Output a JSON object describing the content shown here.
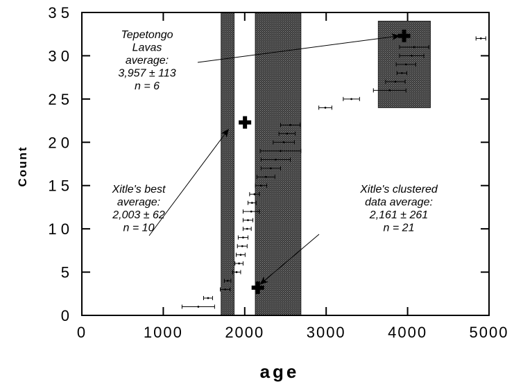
{
  "chart_data": {
    "type": "scatter",
    "title": "",
    "xlabel": "age",
    "ylabel": "Count",
    "xlim": [
      0,
      5000
    ],
    "ylim": [
      0,
      35
    ],
    "xticks": [
      "0",
      "1000",
      "2000",
      "3000",
      "4000",
      "5000"
    ],
    "yticks": [
      "0",
      "5",
      "1 0",
      "1 5",
      "2 0",
      "2 5",
      "3 0",
      "3 5"
    ],
    "grid": false,
    "shaded_bands": [
      {
        "x0": 1710,
        "x1": 1870
      },
      {
        "x0": 2130,
        "x1": 2690
      },
      {
        "x0": 3640,
        "x1": 4280,
        "y0": 24,
        "y1": 34
      }
    ],
    "points": [
      {
        "x": 1430,
        "y": 1,
        "err": 200
      },
      {
        "x": 1550,
        "y": 2,
        "err": 55
      },
      {
        "x": 1760,
        "y": 3,
        "err": 60
      },
      {
        "x": 1790,
        "y": 4,
        "err": 40
      },
      {
        "x": 1900,
        "y": 5,
        "err": 50
      },
      {
        "x": 1930,
        "y": 6,
        "err": 50
      },
      {
        "x": 1950,
        "y": 7,
        "err": 55
      },
      {
        "x": 1970,
        "y": 8,
        "err": 60
      },
      {
        "x": 1980,
        "y": 9,
        "err": 60
      },
      {
        "x": 2030,
        "y": 10,
        "err": 50
      },
      {
        "x": 2040,
        "y": 11,
        "err": 60
      },
      {
        "x": 2080,
        "y": 12,
        "err": 100
      },
      {
        "x": 2090,
        "y": 13,
        "err": 50
      },
      {
        "x": 2120,
        "y": 14,
        "err": 60
      },
      {
        "x": 2200,
        "y": 15,
        "err": 70
      },
      {
        "x": 2260,
        "y": 16,
        "err": 110
      },
      {
        "x": 2320,
        "y": 17,
        "err": 120
      },
      {
        "x": 2380,
        "y": 18,
        "err": 180
      },
      {
        "x": 2440,
        "y": 19,
        "err": 250
      },
      {
        "x": 2480,
        "y": 20,
        "err": 130
      },
      {
        "x": 2520,
        "y": 21,
        "err": 100
      },
      {
        "x": 2560,
        "y": 22,
        "err": 120
      },
      {
        "x": 2990,
        "y": 24,
        "err": 80
      },
      {
        "x": 3310,
        "y": 25,
        "err": 100
      },
      {
        "x": 3780,
        "y": 26,
        "err": 200
      },
      {
        "x": 3850,
        "y": 27,
        "err": 120
      },
      {
        "x": 3930,
        "y": 28,
        "err": 60
      },
      {
        "x": 3980,
        "y": 29,
        "err": 120
      },
      {
        "x": 4050,
        "y": 30,
        "err": 150
      },
      {
        "x": 4080,
        "y": 31,
        "err": 180
      },
      {
        "x": 4900,
        "y": 32,
        "err": 60
      }
    ],
    "averages": [
      {
        "x": 3957,
        "y": 32.3
      },
      {
        "x": 2003,
        "y": 22.3
      },
      {
        "x": 2161,
        "y": 3.2
      }
    ],
    "annotations": [
      {
        "lines": [
          "Tepetongo",
          "Lavas",
          "average:",
          "3,957 ± 113",
          "n = 6"
        ],
        "arrow_to": {
          "x": 3900,
          "y": 32.3
        }
      },
      {
        "lines": [
          "Xitle's best",
          "average:",
          "2,003 ± 62",
          "n = 10"
        ],
        "arrow_to": {
          "x": 1800,
          "y": 21.5
        }
      },
      {
        "lines": [
          "Xitle's clustered",
          "data average:",
          "2,161 ± 261",
          "n = 21"
        ],
        "arrow_to": {
          "x": 2190,
          "y": 3.6
        }
      }
    ]
  }
}
